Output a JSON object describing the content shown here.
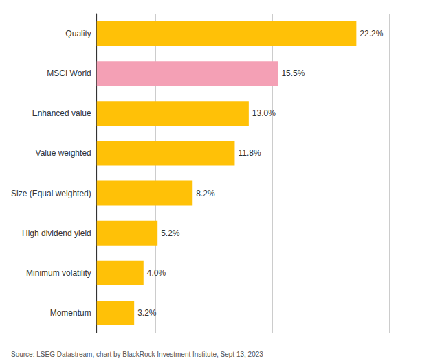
{
  "chart_data": {
    "type": "bar",
    "orientation": "horizontal",
    "categories": [
      "Momentum",
      "Minimum volatility",
      "High dividend yield",
      "Size (Equal weighted)",
      "Value weighted",
      "Enhanced value",
      "MSCI World",
      "Quality"
    ],
    "values": [
      3.2,
      4.0,
      5.2,
      8.2,
      11.8,
      13.0,
      15.5,
      22.2
    ],
    "value_labels": [
      "3.2%",
      "4.0%",
      "5.2%",
      "8.2%",
      "11.8%",
      "13.0%",
      "15.5%",
      "22.2%"
    ],
    "data_labels": true,
    "colors": [
      "#FFC107",
      "#FFC107",
      "#FFC107",
      "#FFC107",
      "#FFC107",
      "#FFC107",
      "#F4A0B5",
      "#FFC107"
    ],
    "xlim": [
      0,
      27
    ],
    "xticks": [
      5,
      10,
      15,
      20,
      25
    ],
    "grid": true,
    "tick_labels": "y",
    "annotations": [
      "Source: LSEG Datastream, chart by BlackRock Investment Institute, Sept 13, 2023"
    ]
  }
}
